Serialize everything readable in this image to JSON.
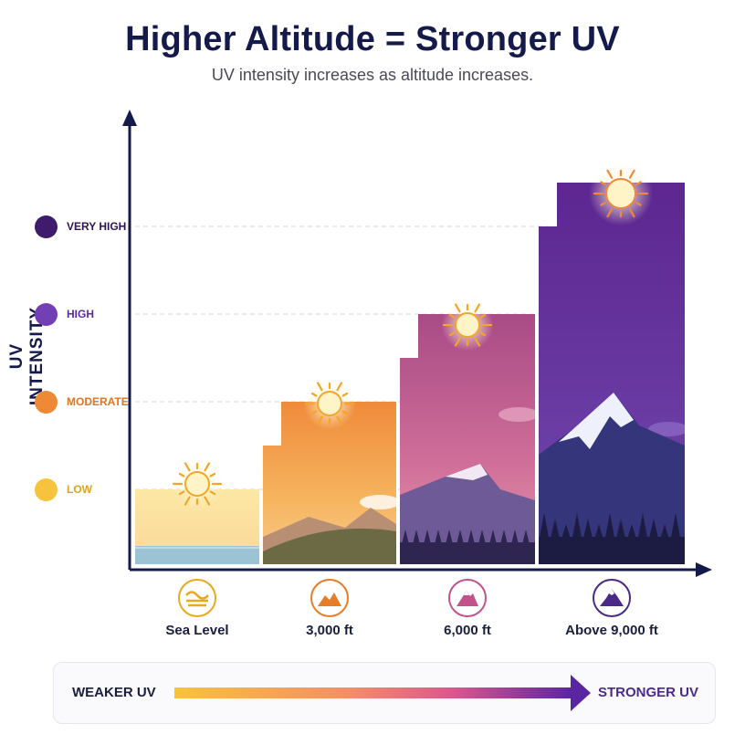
{
  "title": "Higher Altitude = Stronger UV",
  "subtitle": "UV intensity increases as altitude increases.",
  "chart_data": {
    "type": "bar",
    "ylabel": "UV INTENSITY",
    "y_levels": [
      {
        "label": "LOW",
        "value": 1,
        "color": "#f6c33d",
        "text_color": "#e0a21b"
      },
      {
        "label": "MODERATE",
        "value": 2,
        "color": "#ee8a35",
        "text_color": "#e0741f"
      },
      {
        "label": "HIGH",
        "value": 3,
        "color": "#7240b4",
        "text_color": "#5a2aa0"
      },
      {
        "label": "VERY HIGH",
        "value": 4,
        "color": "#3e1b6b",
        "text_color": "#2c1458"
      }
    ],
    "categories": [
      "Sea Level",
      "3,000 ft",
      "6,000 ft",
      "Above 9,000 ft"
    ],
    "values": [
      1,
      2,
      3,
      4.5
    ],
    "icons": [
      "wave-icon",
      "hill-icon",
      "mountain-icon",
      "high-mountain-icon"
    ],
    "icon_colors": [
      "#e8a91e",
      "#e77d27",
      "#c2538a",
      "#4a2a86"
    ],
    "grid": "dashed lines at level ticks",
    "legend": {
      "left": "WEAKER UV",
      "right": "STRONGER UV",
      "gradient": [
        "#f6c33d",
        "#f28c6a",
        "#d9578e",
        "#5a25a0"
      ]
    }
  }
}
